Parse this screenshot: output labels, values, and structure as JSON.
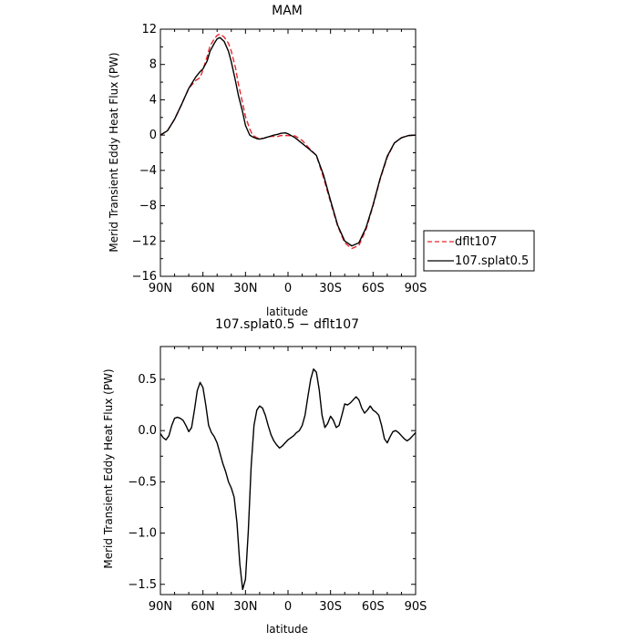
{
  "chart_data": [
    {
      "type": "line",
      "title": "MAM",
      "xlabel": "latitude",
      "ylabel": "Merid Transient Eddy Heat Flux (PW)",
      "xlim": [
        90,
        -90
      ],
      "ylim": [
        -16,
        12
      ],
      "x_ticks": [
        90,
        60,
        30,
        0,
        -30,
        -60,
        -90
      ],
      "x_tick_labels": [
        "90N",
        "60N",
        "30N",
        "0",
        "30S",
        "60S",
        "90S"
      ],
      "y_ticks": [
        12,
        8,
        4,
        0,
        -4,
        -8,
        -12,
        -16
      ],
      "y_tick_labels": [
        "12",
        "8",
        "4",
        "0",
        "−4",
        "−8",
        "−12",
        "−16"
      ],
      "legend_position": "outside right",
      "series": [
        {
          "name": "dflt107",
          "color": "#e8262b",
          "dash": "dashed",
          "x": [
            90,
            85,
            80,
            75,
            70,
            65,
            62,
            60,
            57,
            55,
            52,
            50,
            48,
            45,
            42,
            40,
            37,
            35,
            32,
            30,
            27,
            25,
            22,
            20,
            17,
            15,
            12,
            10,
            7,
            5,
            2,
            0,
            -5,
            -10,
            -15,
            -20,
            -25,
            -30,
            -35,
            -40,
            -45,
            -50,
            -55,
            -60,
            -65,
            -70,
            -75,
            -80,
            -85,
            -90
          ],
          "y": [
            0,
            0.5,
            1.8,
            3.5,
            5.3,
            6.2,
            6.5,
            7.4,
            8.9,
            10.1,
            10.9,
            11.3,
            11.45,
            11.1,
            10.4,
            9.5,
            7.6,
            5.8,
            3.6,
            2.1,
            0.7,
            0.0,
            -0.3,
            -0.4,
            -0.35,
            -0.25,
            -0.15,
            -0.15,
            -0.15,
            -0.05,
            -0.05,
            -0.05,
            -0.1,
            -0.6,
            -1.5,
            -2.3,
            -4.8,
            -7.6,
            -10.3,
            -12.2,
            -12.85,
            -12.5,
            -10.7,
            -8.0,
            -5.0,
            -2.5,
            -0.9,
            -0.3,
            -0.05,
            0
          ]
        },
        {
          "name": "107.splat0.5",
          "color": "#000000",
          "dash": "solid",
          "x": [
            90,
            85,
            80,
            75,
            70,
            65,
            62,
            60,
            57,
            55,
            52,
            50,
            48,
            45,
            42,
            40,
            37,
            35,
            32,
            30,
            27,
            25,
            22,
            20,
            17,
            15,
            12,
            10,
            7,
            5,
            2,
            0,
            -5,
            -10,
            -15,
            -20,
            -25,
            -30,
            -35,
            -40,
            -45,
            -50,
            -55,
            -60,
            -65,
            -70,
            -75,
            -80,
            -85,
            -90
          ],
          "y": [
            0,
            0.5,
            1.8,
            3.5,
            5.3,
            6.6,
            7.2,
            7.5,
            8.4,
            9.5,
            10.4,
            10.9,
            11.05,
            10.6,
            9.5,
            8.3,
            6.1,
            4.5,
            2.6,
            1.1,
            0.0,
            -0.2,
            -0.4,
            -0.45,
            -0.35,
            -0.25,
            -0.1,
            0.0,
            0.1,
            0.2,
            0.25,
            0.15,
            -0.3,
            -0.95,
            -1.6,
            -2.3,
            -4.5,
            -7.4,
            -10.2,
            -12.0,
            -12.55,
            -12.2,
            -10.5,
            -7.9,
            -4.9,
            -2.4,
            -0.9,
            -0.3,
            -0.05,
            0
          ]
        }
      ]
    },
    {
      "type": "line",
      "title": "107.splat0.5 − dflt107",
      "xlabel": "latitude",
      "ylabel": "Merid Transient Eddy Heat Flux (PW)",
      "xlim": [
        90,
        -90
      ],
      "ylim": [
        -1.6,
        0.82
      ],
      "x_ticks": [
        90,
        60,
        30,
        0,
        -30,
        -60,
        -90
      ],
      "x_tick_labels": [
        "90N",
        "60N",
        "30N",
        "0",
        "30S",
        "60S",
        "90S"
      ],
      "y_ticks": [
        0.5,
        0.0,
        -0.5,
        -1.0,
        -1.5
      ],
      "y_tick_labels": [
        "0.5",
        "0.0",
        "−0.5",
        "−1.0",
        "−1.5"
      ],
      "series": [
        {
          "color": "#000000",
          "dash": "solid",
          "x": [
            90,
            88,
            86,
            84,
            82,
            80,
            78,
            76,
            74,
            72,
            70,
            68,
            66,
            64,
            62,
            60,
            58,
            56,
            54,
            52,
            50,
            48,
            46,
            44,
            42,
            40,
            38,
            36,
            34,
            32,
            30,
            28,
            26,
            24,
            22,
            20,
            18,
            16,
            14,
            12,
            10,
            8,
            6,
            4,
            2,
            0,
            -2,
            -4,
            -6,
            -8,
            -10,
            -12,
            -14,
            -16,
            -18,
            -20,
            -22,
            -24,
            -26,
            -28,
            -30,
            -32,
            -34,
            -36,
            -38,
            -40,
            -42,
            -44,
            -46,
            -48,
            -50,
            -52,
            -54,
            -56,
            -58,
            -60,
            -62,
            -64,
            -66,
            -68,
            -70,
            -72,
            -74,
            -76,
            -78,
            -80,
            -82,
            -84,
            -86,
            -88,
            -90
          ],
          "y": [
            -0.03,
            -0.07,
            -0.09,
            -0.05,
            0.05,
            0.12,
            0.13,
            0.12,
            0.1,
            0.05,
            -0.01,
            0.03,
            0.2,
            0.39,
            0.47,
            0.42,
            0.25,
            0.05,
            -0.02,
            -0.06,
            -0.12,
            -0.22,
            -0.32,
            -0.4,
            -0.5,
            -0.56,
            -0.65,
            -0.9,
            -1.3,
            -1.55,
            -1.45,
            -0.98,
            -0.35,
            0.05,
            0.2,
            0.24,
            0.22,
            0.15,
            0.05,
            -0.04,
            -0.1,
            -0.14,
            -0.17,
            -0.15,
            -0.12,
            -0.09,
            -0.07,
            -0.05,
            -0.02,
            0.0,
            0.05,
            0.15,
            0.33,
            0.5,
            0.6,
            0.57,
            0.4,
            0.15,
            0.03,
            0.07,
            0.14,
            0.1,
            0.03,
            0.05,
            0.15,
            0.26,
            0.25,
            0.27,
            0.3,
            0.33,
            0.3,
            0.22,
            0.17,
            0.2,
            0.24,
            0.2,
            0.18,
            0.15,
            0.05,
            -0.08,
            -0.12,
            -0.06,
            -0.01,
            0.0,
            -0.02,
            -0.05,
            -0.08,
            -0.1,
            -0.08,
            -0.05,
            -0.02
          ]
        }
      ]
    }
  ]
}
